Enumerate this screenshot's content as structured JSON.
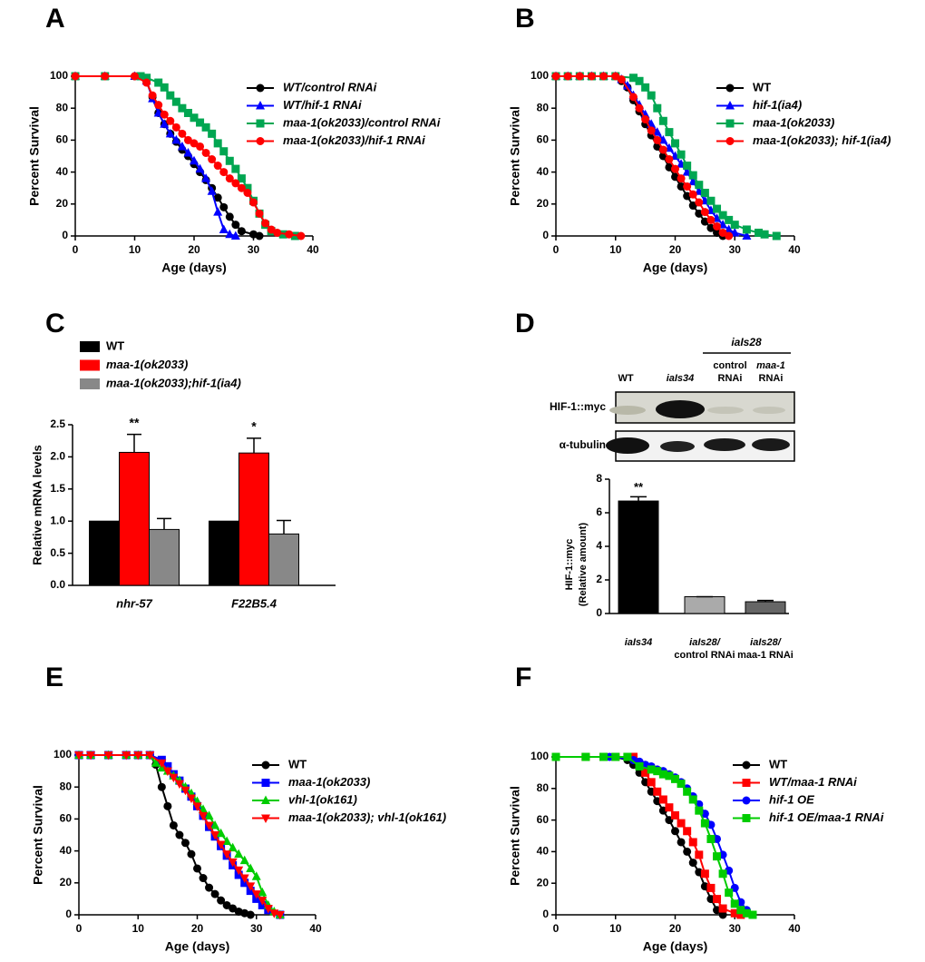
{
  "chart_data": [
    {
      "type": "line",
      "label": "A",
      "xlabel": "Age (days)",
      "ylabel": "Percent Survival",
      "xlim": [
        0,
        40
      ],
      "ylim": [
        0,
        100
      ],
      "xticks": [
        0,
        10,
        20,
        30,
        40
      ],
      "yticks": [
        0,
        20,
        40,
        60,
        80,
        100
      ],
      "series": [
        {
          "name": "WT/control RNAi",
          "color": "#000000",
          "marker": "circle",
          "x": [
            0,
            5,
            10,
            12,
            13,
            14,
            15,
            16,
            17,
            18,
            19,
            20,
            21,
            22,
            23,
            24,
            25,
            26,
            27,
            28,
            30,
            31
          ],
          "values": [
            100,
            100,
            100,
            97,
            87,
            77,
            70,
            64,
            59,
            54,
            50,
            45,
            40,
            35,
            30,
            24,
            18,
            12,
            7,
            3,
            1,
            0
          ]
        },
        {
          "name": "WT/hif-1 RNAi",
          "color": "#0000ff",
          "marker": "triangle",
          "x": [
            0,
            5,
            10,
            12,
            13,
            14,
            15,
            16,
            17,
            18,
            19,
            20,
            21,
            22,
            23,
            24,
            25,
            26,
            27
          ],
          "values": [
            100,
            100,
            100,
            97,
            86,
            77,
            70,
            64,
            60,
            56,
            52,
            47,
            42,
            36,
            28,
            15,
            4,
            1,
            0
          ]
        },
        {
          "name": "maa-1(ok2033)/control RNAi",
          "color": "#00a651",
          "marker": "square",
          "x": [
            0,
            5,
            11,
            12,
            14,
            15,
            16,
            17,
            18,
            19,
            20,
            21,
            22,
            23,
            24,
            25,
            26,
            27,
            28,
            29,
            30,
            31,
            32,
            33,
            35,
            37
          ],
          "values": [
            100,
            100,
            100,
            99,
            96,
            93,
            88,
            84,
            80,
            77,
            74,
            71,
            68,
            64,
            58,
            53,
            47,
            42,
            36,
            30,
            22,
            14,
            7,
            3,
            1,
            0
          ]
        },
        {
          "name": "maa-1(ok2033)/hif-1 RNAi",
          "color": "#ff0000",
          "marker": "circle",
          "x": [
            0,
            5,
            10,
            12,
            13,
            14,
            15,
            16,
            17,
            18,
            19,
            20,
            21,
            22,
            23,
            24,
            25,
            26,
            27,
            28,
            29,
            30,
            31,
            32,
            33,
            34,
            36,
            38
          ],
          "values": [
            100,
            100,
            100,
            96,
            88,
            82,
            76,
            72,
            68,
            64,
            60,
            58,
            56,
            52,
            48,
            44,
            40,
            36,
            33,
            30,
            27,
            21,
            14,
            8,
            4,
            2,
            1,
            0
          ]
        }
      ]
    },
    {
      "type": "line",
      "label": "B",
      "xlabel": "Age (days)",
      "ylabel": "Percent Survival",
      "xlim": [
        0,
        40
      ],
      "ylim": [
        0,
        100
      ],
      "xticks": [
        0,
        10,
        20,
        30,
        40
      ],
      "yticks": [
        0,
        20,
        40,
        60,
        80,
        100
      ],
      "series": [
        {
          "name": "WT",
          "color": "#000000",
          "marker": "circle",
          "x": [
            0,
            2,
            4,
            6,
            8,
            10,
            11,
            12,
            13,
            14,
            15,
            16,
            17,
            18,
            19,
            20,
            21,
            22,
            23,
            24,
            25,
            26,
            27,
            28
          ],
          "values": [
            100,
            100,
            100,
            100,
            100,
            100,
            97,
            93,
            85,
            78,
            70,
            63,
            56,
            50,
            43,
            37,
            31,
            25,
            19,
            14,
            9,
            5,
            2,
            0
          ]
        },
        {
          "name": "hif-1(ia4)",
          "color": "#0000ff",
          "marker": "triangle",
          "x": [
            0,
            2,
            4,
            6,
            8,
            10,
            11,
            12,
            13,
            14,
            15,
            16,
            17,
            18,
            19,
            20,
            21,
            22,
            23,
            24,
            25,
            26,
            27,
            28,
            29,
            30,
            32
          ],
          "values": [
            100,
            100,
            100,
            100,
            100,
            100,
            98,
            94,
            88,
            82,
            76,
            70,
            65,
            60,
            55,
            50,
            45,
            40,
            34,
            28,
            22,
            16,
            11,
            7,
            4,
            2,
            0
          ]
        },
        {
          "name": "maa-1(ok2033)",
          "color": "#00a651",
          "marker": "square",
          "x": [
            0,
            2,
            4,
            6,
            8,
            10,
            13,
            14,
            15,
            16,
            17,
            18,
            19,
            20,
            21,
            22,
            23,
            24,
            25,
            26,
            27,
            28,
            29,
            30,
            32,
            34,
            35,
            37
          ],
          "values": [
            100,
            100,
            100,
            100,
            100,
            100,
            99,
            97,
            93,
            88,
            80,
            72,
            65,
            58,
            51,
            44,
            38,
            32,
            27,
            22,
            17,
            13,
            10,
            7,
            4,
            2,
            1,
            0
          ]
        },
        {
          "name": "maa-1(ok2033); hif-1(ia4)",
          "color": "#ff0000",
          "marker": "circle",
          "x": [
            0,
            2,
            4,
            6,
            8,
            10,
            11,
            13,
            14,
            15,
            16,
            17,
            18,
            19,
            20,
            21,
            22,
            23,
            24,
            25,
            26,
            27,
            28,
            29
          ],
          "values": [
            100,
            100,
            100,
            100,
            100,
            100,
            98,
            87,
            80,
            73,
            66,
            60,
            54,
            48,
            42,
            36,
            31,
            26,
            21,
            15,
            10,
            6,
            2,
            0
          ]
        }
      ]
    },
    {
      "type": "grouped-bar",
      "label": "C",
      "ylabel": "Relative mRNA levels",
      "categories": [
        "nhr-57",
        "F22B5.4"
      ],
      "annotations": [
        "**",
        "*"
      ],
      "ylim": [
        0,
        2.5
      ],
      "yticks": [
        {
          "value": 0,
          "label": "0.0"
        },
        0.5,
        {
          "value": 1,
          "label": "1.0"
        },
        1.5,
        {
          "value": 2,
          "label": "2.0"
        },
        2.5
      ],
      "series": [
        {
          "name": "WT",
          "color": "#000000",
          "values": [
            1.0,
            1.0
          ]
        },
        {
          "name": "maa-1(ok2033)",
          "color": "#ff0000",
          "values": [
            2.07,
            2.06
          ],
          "errors": [
            0.28,
            0.23
          ]
        },
        {
          "name": "maa-1(ok2033);hif-1(ia4)",
          "color": "#888888",
          "values": [
            0.87,
            0.8
          ],
          "errors": [
            0.17,
            0.21
          ]
        }
      ]
    },
    {
      "type": "bar",
      "label": "D",
      "ylabel": [
        "HIF-1::myc",
        "(Relative amount)"
      ],
      "blot_group": "iaIs28",
      "blot_lanes": [
        [
          "WT"
        ],
        [
          "iaIs34"
        ],
        [
          "control",
          "RNAi"
        ],
        [
          "maa-1",
          "RNAi"
        ]
      ],
      "blot_rows": [
        "HIF-1::myc",
        "α-tubulin"
      ],
      "categories": [
        [
          "iaIs34"
        ],
        [
          "iaIs28/",
          "control RNAi"
        ],
        [
          "iaIs28/",
          "maa-1 RNAi"
        ]
      ],
      "values": [
        6.7,
        1.0,
        0.7
      ],
      "errors": [
        0.25,
        0,
        0.08
      ],
      "colors": [
        "#000000",
        "#aaaaaa",
        "#666666"
      ],
      "annotations": [
        "**",
        null,
        null
      ],
      "ylim": [
        0,
        8
      ],
      "yticks": [
        0,
        2,
        4,
        6,
        8
      ]
    },
    {
      "type": "line",
      "label": "E",
      "xlabel": "Age (days)",
      "ylabel": "Percent Survival",
      "xlim": [
        0,
        40
      ],
      "ylim": [
        0,
        100
      ],
      "xticks": [
        0,
        10,
        20,
        30,
        40
      ],
      "yticks": [
        0,
        20,
        40,
        60,
        80,
        100
      ],
      "series": [
        {
          "name": "WT",
          "color": "#000000",
          "marker": "circle",
          "x": [
            0,
            2,
            5,
            8,
            10,
            12,
            13,
            14,
            15,
            16,
            17,
            18,
            19,
            20,
            21,
            22,
            23,
            24,
            25,
            26,
            27,
            28,
            29
          ],
          "values": [
            100,
            100,
            100,
            100,
            100,
            100,
            94,
            80,
            68,
            56,
            50,
            45,
            38,
            29,
            23,
            17,
            13,
            9,
            6,
            4,
            2,
            1,
            0
          ]
        },
        {
          "name": "maa-1(ok2033)",
          "color": "#0000ff",
          "marker": "square",
          "x": [
            0,
            2,
            5,
            8,
            10,
            12,
            14,
            15,
            16,
            17,
            18,
            19,
            20,
            21,
            22,
            23,
            24,
            25,
            26,
            27,
            28,
            29,
            30,
            31,
            32,
            34
          ],
          "values": [
            100,
            100,
            100,
            100,
            100,
            100,
            97,
            93,
            88,
            84,
            79,
            74,
            68,
            62,
            55,
            49,
            43,
            37,
            31,
            25,
            20,
            15,
            10,
            6,
            3,
            0
          ]
        },
        {
          "name": "vhl-1(ok161)",
          "color": "#00cc00",
          "marker": "triangle",
          "x": [
            0,
            2,
            5,
            8,
            10,
            12,
            13,
            14,
            15,
            16,
            17,
            18,
            19,
            20,
            21,
            22,
            23,
            24,
            25,
            26,
            27,
            28,
            29,
            30,
            31,
            32,
            33,
            34
          ],
          "values": [
            100,
            100,
            100,
            100,
            100,
            100,
            95,
            92,
            90,
            87,
            84,
            80,
            76,
            71,
            66,
            62,
            56,
            51,
            46,
            42,
            38,
            34,
            29,
            24,
            14,
            6,
            2,
            0
          ]
        },
        {
          "name": "maa-1(ok2033); vhl-1(ok161)",
          "color": "#ff0000",
          "marker": "triangle-down",
          "x": [
            0,
            2,
            5,
            8,
            10,
            12,
            14,
            15,
            16,
            17,
            18,
            19,
            20,
            21,
            22,
            23,
            24,
            25,
            26,
            27,
            28,
            29,
            30,
            31,
            32,
            33,
            34
          ],
          "values": [
            100,
            100,
            100,
            100,
            100,
            100,
            95,
            90,
            86,
            82,
            78,
            73,
            68,
            62,
            56,
            50,
            44,
            38,
            33,
            28,
            23,
            18,
            13,
            9,
            4,
            1,
            0
          ]
        }
      ]
    },
    {
      "type": "line",
      "label": "F",
      "xlabel": "Age (days)",
      "ylabel": "Percent Survival",
      "xlim": [
        0,
        40
      ],
      "ylim": [
        0,
        100
      ],
      "xticks": [
        0,
        10,
        20,
        30,
        40
      ],
      "yticks": [
        0,
        20,
        40,
        60,
        80,
        100
      ],
      "series": [
        {
          "name": "WT",
          "color": "#000000",
          "marker": "circle",
          "x": [
            0,
            5,
            8,
            10,
            12,
            13,
            14,
            15,
            16,
            17,
            18,
            19,
            20,
            21,
            22,
            23,
            24,
            25,
            26,
            27,
            28
          ],
          "values": [
            100,
            100,
            100,
            100,
            98,
            95,
            90,
            84,
            78,
            72,
            66,
            60,
            53,
            46,
            40,
            33,
            27,
            18,
            10,
            3,
            0
          ]
        },
        {
          "name": "WT/maa-1 RNAi",
          "color": "#ff0000",
          "marker": "square",
          "x": [
            0,
            5,
            8,
            10,
            13,
            14,
            15,
            16,
            17,
            18,
            19,
            20,
            21,
            22,
            23,
            24,
            25,
            26,
            27,
            28,
            30,
            31
          ],
          "values": [
            100,
            100,
            100,
            100,
            100,
            95,
            90,
            84,
            78,
            73,
            68,
            63,
            58,
            53,
            46,
            38,
            26,
            17,
            10,
            4,
            1,
            0
          ]
        },
        {
          "name": "hif-1 OE",
          "color": "#0000ff",
          "marker": "circle",
          "x": [
            0,
            5,
            9,
            10,
            13,
            14,
            15,
            16,
            17,
            18,
            19,
            20,
            21,
            22,
            23,
            24,
            25,
            26,
            27,
            28,
            29,
            30,
            31,
            32,
            33
          ],
          "values": [
            100,
            100,
            100,
            100,
            98,
            97,
            95,
            94,
            92,
            91,
            89,
            87,
            84,
            80,
            75,
            70,
            64,
            57,
            48,
            38,
            28,
            17,
            8,
            3,
            0
          ]
        },
        {
          "name": "hif-1 OE/maa-1 RNAi",
          "color": "#00cc00",
          "marker": "square",
          "x": [
            0,
            5,
            8,
            10,
            12,
            14,
            16,
            17,
            18,
            19,
            20,
            21,
            22,
            23,
            24,
            25,
            26,
            27,
            28,
            29,
            30,
            31,
            32,
            33
          ],
          "values": [
            100,
            100,
            100,
            100,
            100,
            94,
            92,
            91,
            89,
            88,
            86,
            83,
            78,
            73,
            66,
            58,
            48,
            37,
            26,
            14,
            7,
            3,
            1,
            0
          ]
        }
      ]
    }
  ]
}
